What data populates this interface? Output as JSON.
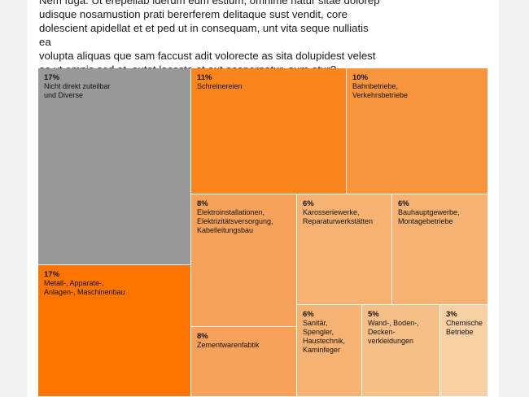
{
  "intro_text": "Nem fuga. Ut erepellab iderum eum estium, omnime natur sitae dolorep\nudisque nosamustion prati bererferem delitaque sust vendit, core\ndolescient apidellat et et ped ut in consequam, unt vita seque nulliatis ea\nvolupta aliquas que sam faccust adit volorecte as sita dolupidest velest\nas ut omnis sed et, autet lacesto et aut acepernatur, sum etur?",
  "chart_data": {
    "type": "treemap",
    "unit": "%",
    "items": [
      {
        "pct_label": "17%",
        "value": 17,
        "label": "Nicht direkt zuteilbar\nund Diverse",
        "color": "#999999"
      },
      {
        "pct_label": "17%",
        "value": 17,
        "label": "Metall-, Apparate-,\nAnlagen-, Maschinenbau",
        "color": "#ff7300"
      },
      {
        "pct_label": "11%",
        "value": 11,
        "label": "Schreinereien",
        "color": "#fa851c"
      },
      {
        "pct_label": "10%",
        "value": 10,
        "label": "Bahnbetriebe,\nVerkehrsbetriebe",
        "color": "#f9953d"
      },
      {
        "pct_label": "8%",
        "value": 8,
        "label": "Elektroinstallationen,\nElektrizitätsversorgung,\nKabelleitungsbau",
        "color": "#f7a25a"
      },
      {
        "pct_label": "8%",
        "value": 8,
        "label": "Zementwarenfabtik",
        "color": "#f7a25a"
      },
      {
        "pct_label": "6%",
        "value": 6,
        "label": "Karosseriewerke,\nReparaturwerkstätten",
        "color": "#f6b272"
      },
      {
        "pct_label": "6%",
        "value": 6,
        "label": "Bauhauptgewerbe,\nMontagebetriebe",
        "color": "#f6b272"
      },
      {
        "pct_label": "6%",
        "value": 6,
        "label": "Sanitär,\nSpengler,\nHaustechnik,\nKaminfeger",
        "color": "#f6b272"
      },
      {
        "pct_label": "5%",
        "value": 5,
        "label": "Wand-, Boden-,\nDecken-\nverkleidungen",
        "color": "#f6bf88"
      },
      {
        "pct_label": "3%",
        "value": 3,
        "label": "Chemische\nBetriebe",
        "color": "#f9d0a4"
      }
    ]
  }
}
